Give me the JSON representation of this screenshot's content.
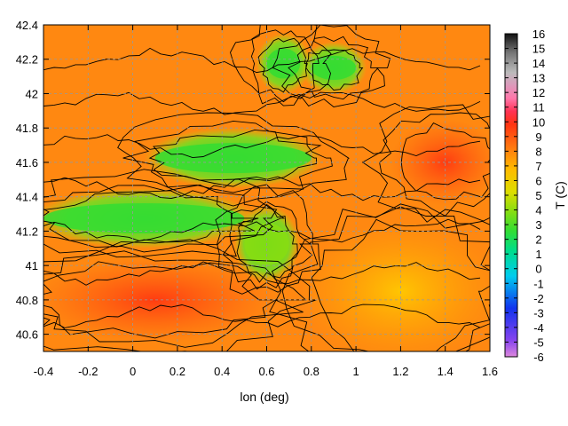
{
  "chart_data": {
    "type": "heatmap",
    "title": "",
    "xlabel": "lon (deg)",
    "ylabel": "",
    "colorbar_label": "T (C)",
    "xlim": [
      -0.4,
      1.6
    ],
    "ylim": [
      40.5,
      42.4
    ],
    "x_ticks": [
      "-0.4",
      "-0.2",
      "0",
      "0.2",
      "0.4",
      "0.6",
      "0.8",
      "1",
      "1.2",
      "1.4",
      "1.6"
    ],
    "y_ticks": [
      "40.6",
      "40.8",
      "41",
      "41.2",
      "41.4",
      "41.6",
      "41.8",
      "42",
      "42.2",
      "42.4"
    ],
    "colorbar_range": [
      -6,
      16
    ],
    "colorbar_ticks": [
      "16",
      "15",
      "14",
      "13",
      "12",
      "11",
      "10",
      "9",
      "8",
      "7",
      "6",
      "5",
      "4",
      "3",
      "2",
      "1",
      "0",
      "-1",
      "-2",
      "-3",
      "-4",
      "-5",
      "-6"
    ],
    "grid": true,
    "contours": true,
    "regions": [
      {
        "lon": [
          0.1,
          0.8
        ],
        "lat": [
          41.5,
          41.75
        ],
        "T": 3
      },
      {
        "lon": [
          -0.4,
          0.5
        ],
        "lat": [
          41.15,
          41.4
        ],
        "T": 3
      },
      {
        "lon": [
          0.5,
          0.7
        ],
        "lat": [
          40.95,
          41.3
        ],
        "T": 4
      },
      {
        "lon": [
          0.6,
          0.75
        ],
        "lat": [
          42.05,
          42.3
        ],
        "T": 3
      },
      {
        "lon": [
          0.8,
          1.0
        ],
        "lat": [
          42.05,
          42.25
        ],
        "T": 3
      },
      {
        "lon": [
          -0.4,
          0.6
        ],
        "lat": [
          40.6,
          41.0
        ],
        "T": 9
      },
      {
        "lon": [
          1.2,
          1.6
        ],
        "lat": [
          41.4,
          41.8
        ],
        "T": 10
      },
      {
        "lon": [
          0.8,
          1.6
        ],
        "lat": [
          40.5,
          41.2
        ],
        "T": 8
      }
    ]
  }
}
